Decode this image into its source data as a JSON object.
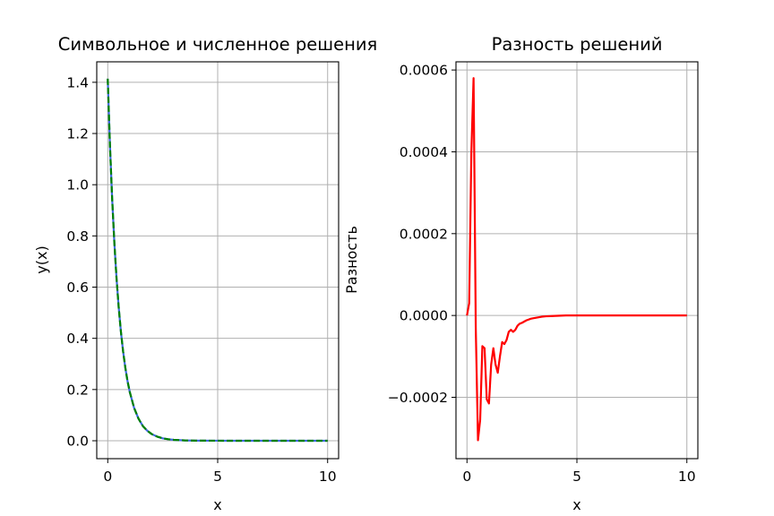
{
  "chart_data": [
    {
      "type": "line",
      "title": "Символьное и численное решения",
      "xlabel": "x",
      "ylabel": "y(x)",
      "xlim": [
        -0.5,
        10.5
      ],
      "ylim": [
        -0.07,
        1.48
      ],
      "xticks": [
        0,
        5,
        10
      ],
      "xtick_labels": [
        "0",
        "5",
        "10"
      ],
      "yticks": [
        0.0,
        0.2,
        0.4,
        0.6,
        0.8,
        1.0,
        1.2,
        1.4
      ],
      "ytick_labels": [
        "0.0",
        "0.2",
        "0.4",
        "0.6",
        "0.8",
        "1.0",
        "1.2",
        "1.4"
      ],
      "grid": true,
      "series": [
        {
          "color": "#4169e1",
          "style": "solid",
          "x": [
            0,
            0.1,
            0.2,
            0.3,
            0.4,
            0.5,
            0.6,
            0.7,
            0.8,
            0.9,
            1.0,
            1.2,
            1.4,
            1.6,
            1.8,
            2.0,
            2.25,
            2.5,
            2.75,
            3.0,
            3.5,
            4.0,
            5.0,
            6.0,
            7.0,
            8.0,
            9.0,
            10.0
          ],
          "y": [
            1.414,
            1.155,
            0.946,
            0.774,
            0.634,
            0.519,
            0.425,
            0.348,
            0.285,
            0.233,
            0.191,
            0.128,
            0.086,
            0.057,
            0.039,
            0.026,
            0.016,
            0.0095,
            0.0058,
            0.0035,
            0.0013,
            0.0005,
            0.0001,
            0.0,
            0.0,
            0.0,
            0.0,
            0.0
          ]
        },
        {
          "color": "#008000",
          "style": "dashed",
          "x": [
            0,
            0.1,
            0.2,
            0.3,
            0.4,
            0.5,
            0.6,
            0.7,
            0.8,
            0.9,
            1.0,
            1.2,
            1.4,
            1.6,
            1.8,
            2.0,
            2.25,
            2.5,
            2.75,
            3.0,
            3.5,
            4.0,
            5.0,
            6.0,
            7.0,
            8.0,
            9.0,
            10.0
          ],
          "y": [
            1.414,
            1.155,
            0.946,
            0.774,
            0.634,
            0.519,
            0.425,
            0.348,
            0.285,
            0.233,
            0.191,
            0.128,
            0.086,
            0.057,
            0.039,
            0.026,
            0.016,
            0.0095,
            0.0058,
            0.0035,
            0.0013,
            0.0005,
            0.0001,
            0.0,
            0.0,
            0.0,
            0.0,
            0.0
          ]
        }
      ]
    },
    {
      "type": "line",
      "title": "Разность решений",
      "xlabel": "x",
      "ylabel": "Разность",
      "xlim": [
        -0.5,
        10.5
      ],
      "ylim": [
        -0.00035,
        0.00062
      ],
      "xticks": [
        0,
        5,
        10
      ],
      "xtick_labels": [
        "0",
        "5",
        "10"
      ],
      "yticks": [
        -0.0002,
        0.0,
        0.0002,
        0.0004,
        0.0006
      ],
      "ytick_labels": [
        "−0.0002",
        "0.0000",
        "0.0002",
        "0.0004",
        "0.0006"
      ],
      "grid": true,
      "series": [
        {
          "color": "#ff0000",
          "style": "solid",
          "x": [
            0,
            0.1,
            0.2,
            0.3,
            0.4,
            0.5,
            0.6,
            0.7,
            0.8,
            0.9,
            1.0,
            1.1,
            1.2,
            1.3,
            1.4,
            1.5,
            1.6,
            1.7,
            1.8,
            1.9,
            2.0,
            2.1,
            2.2,
            2.3,
            2.4,
            2.5,
            2.6,
            2.7,
            2.8,
            2.9,
            3.0,
            3.2,
            3.4,
            3.6,
            3.8,
            4.0,
            4.5,
            5.0,
            6.0,
            7.0,
            8.0,
            9.0,
            10.0
          ],
          "y": [
            0.0,
            3e-05,
            0.0004,
            0.00058,
            -3e-05,
            -0.000305,
            -0.000255,
            -7.5e-05,
            -8e-05,
            -0.000205,
            -0.000215,
            -0.00012,
            -8e-05,
            -0.00012,
            -0.00014,
            -0.0001,
            -6.5e-05,
            -7e-05,
            -6e-05,
            -4e-05,
            -3.5e-05,
            -4e-05,
            -3.5e-05,
            -2.5e-05,
            -2e-05,
            -1.8e-05,
            -1.5e-05,
            -1.2e-05,
            -1e-05,
            -8e-06,
            -7e-06,
            -5e-06,
            -3e-06,
            -2e-06,
            -1.5e-06,
            -1e-06,
            0.0,
            0.0,
            0.0,
            0.0,
            0.0,
            0.0,
            0.0
          ]
        }
      ]
    }
  ]
}
